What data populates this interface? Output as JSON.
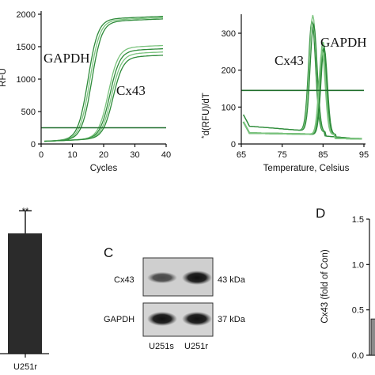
{
  "chart_data": [
    {
      "type": "line",
      "ylabel": "RFU",
      "xlabel": "Cycles",
      "xlim": [
        0,
        40
      ],
      "ylim": [
        0,
        2000
      ],
      "xticks": [
        "0",
        "10",
        "20",
        "30",
        "40"
      ],
      "yticks": [
        "0",
        "500",
        "1000",
        "1500",
        "2000"
      ],
      "annotations": [
        "GAPDH",
        "Cx43"
      ],
      "threshold": 250,
      "series": [
        {
          "group": "GAPDH",
          "midpoint": 15,
          "plateau": 1850,
          "values_note": "sigmoid"
        },
        {
          "group": "GAPDH",
          "midpoint": 15.6,
          "plateau": 1830
        },
        {
          "group": "GAPDH",
          "midpoint": 16.2,
          "plateau": 1810
        },
        {
          "group": "Cx43",
          "midpoint": 21.5,
          "plateau": 1400
        },
        {
          "group": "Cx43",
          "midpoint": 22,
          "plateau": 1350
        },
        {
          "group": "Cx43",
          "midpoint": 22.5,
          "plateau": 1300
        },
        {
          "group": "Cx43",
          "midpoint": 23,
          "plateau": 1250
        }
      ]
    },
    {
      "type": "line",
      "ylabel": "d(RFU)/dT",
      "ylabel_prefix": "*",
      "xlabel": "Temperature, Celsius",
      "xlim": [
        65,
        95
      ],
      "ylim": [
        0,
        300
      ],
      "xticks": [
        "65",
        "75",
        "85",
        "95"
      ],
      "yticks": [
        "0",
        "100",
        "200",
        "300"
      ],
      "annotations": [
        "Cx43",
        "GAPDH"
      ],
      "threshold": 145,
      "series": [
        {
          "group": "Cx43",
          "peak_temp": 82.3,
          "peak": 300
        },
        {
          "group": "Cx43",
          "peak_temp": 82.5,
          "peak": 315
        },
        {
          "group": "Cx43",
          "peak_temp": 82.7,
          "peak": 290
        },
        {
          "group": "GAPDH",
          "peak_temp": 85,
          "peak": 250
        },
        {
          "group": "GAPDH",
          "peak_temp": 85.2,
          "peak": 235
        },
        {
          "group": "GAPDH",
          "peak_temp": 84.8,
          "peak": 225
        }
      ]
    },
    {
      "type": "bar",
      "categories": [
        "U251r"
      ],
      "values": [
        1.6
      ],
      "error": [
        0.3
      ],
      "significance": "**"
    },
    {
      "type": "table",
      "panel": "C",
      "rows": [
        {
          "label": "Cx43",
          "size": "43 kDa",
          "intensities": [
            0.55,
            1.0
          ]
        },
        {
          "label": "GAPDH",
          "size": "37 kDa",
          "intensities": [
            1.0,
            1.0
          ]
        }
      ],
      "lanes": [
        "U251s",
        "U251r"
      ]
    },
    {
      "type": "bar",
      "panel": "D",
      "ylabel": "Cx43 (fold of Con)",
      "ylim": [
        0,
        1.5
      ],
      "yticks": [
        "0.0",
        "0.5",
        "1.0",
        "1.5"
      ],
      "values": [
        0.4
      ]
    }
  ],
  "text": {
    "panelA_ylabel": "RFU",
    "panelA_xlabel": "Cycles",
    "panelA_gapdh": "GAPDH",
    "panelA_cx43": "Cx43",
    "panelB_ylabel": "d(RFU)/dT",
    "panelB_ylabel_prefix": "*",
    "panelB_xlabel": "Temperature, Celsius",
    "panelB_cx43": "Cx43",
    "panelB_gapdh": "GAPDH",
    "panelE_sig": "**",
    "panelE_cat": "U251r",
    "panelC_letter": "C",
    "panelC_row1": "Cx43",
    "panelC_row1_kda": "43 kDa",
    "panelC_row2": "GAPDH",
    "panelC_row2_kda": "37 kDa",
    "panelC_lane1": "U251s",
    "panelC_lane2": "U251r",
    "panelD_letter": "D",
    "panelD_ylabel": "Cx43 (fold of Con)"
  },
  "colors": {
    "curve": "#2e8b3a",
    "curve_light": "#7cc47f",
    "threshold": "#1f6e2b",
    "bar_dark": "#2b2b2b",
    "bar_grey": "#8a8a8a",
    "axis": "#111111"
  }
}
